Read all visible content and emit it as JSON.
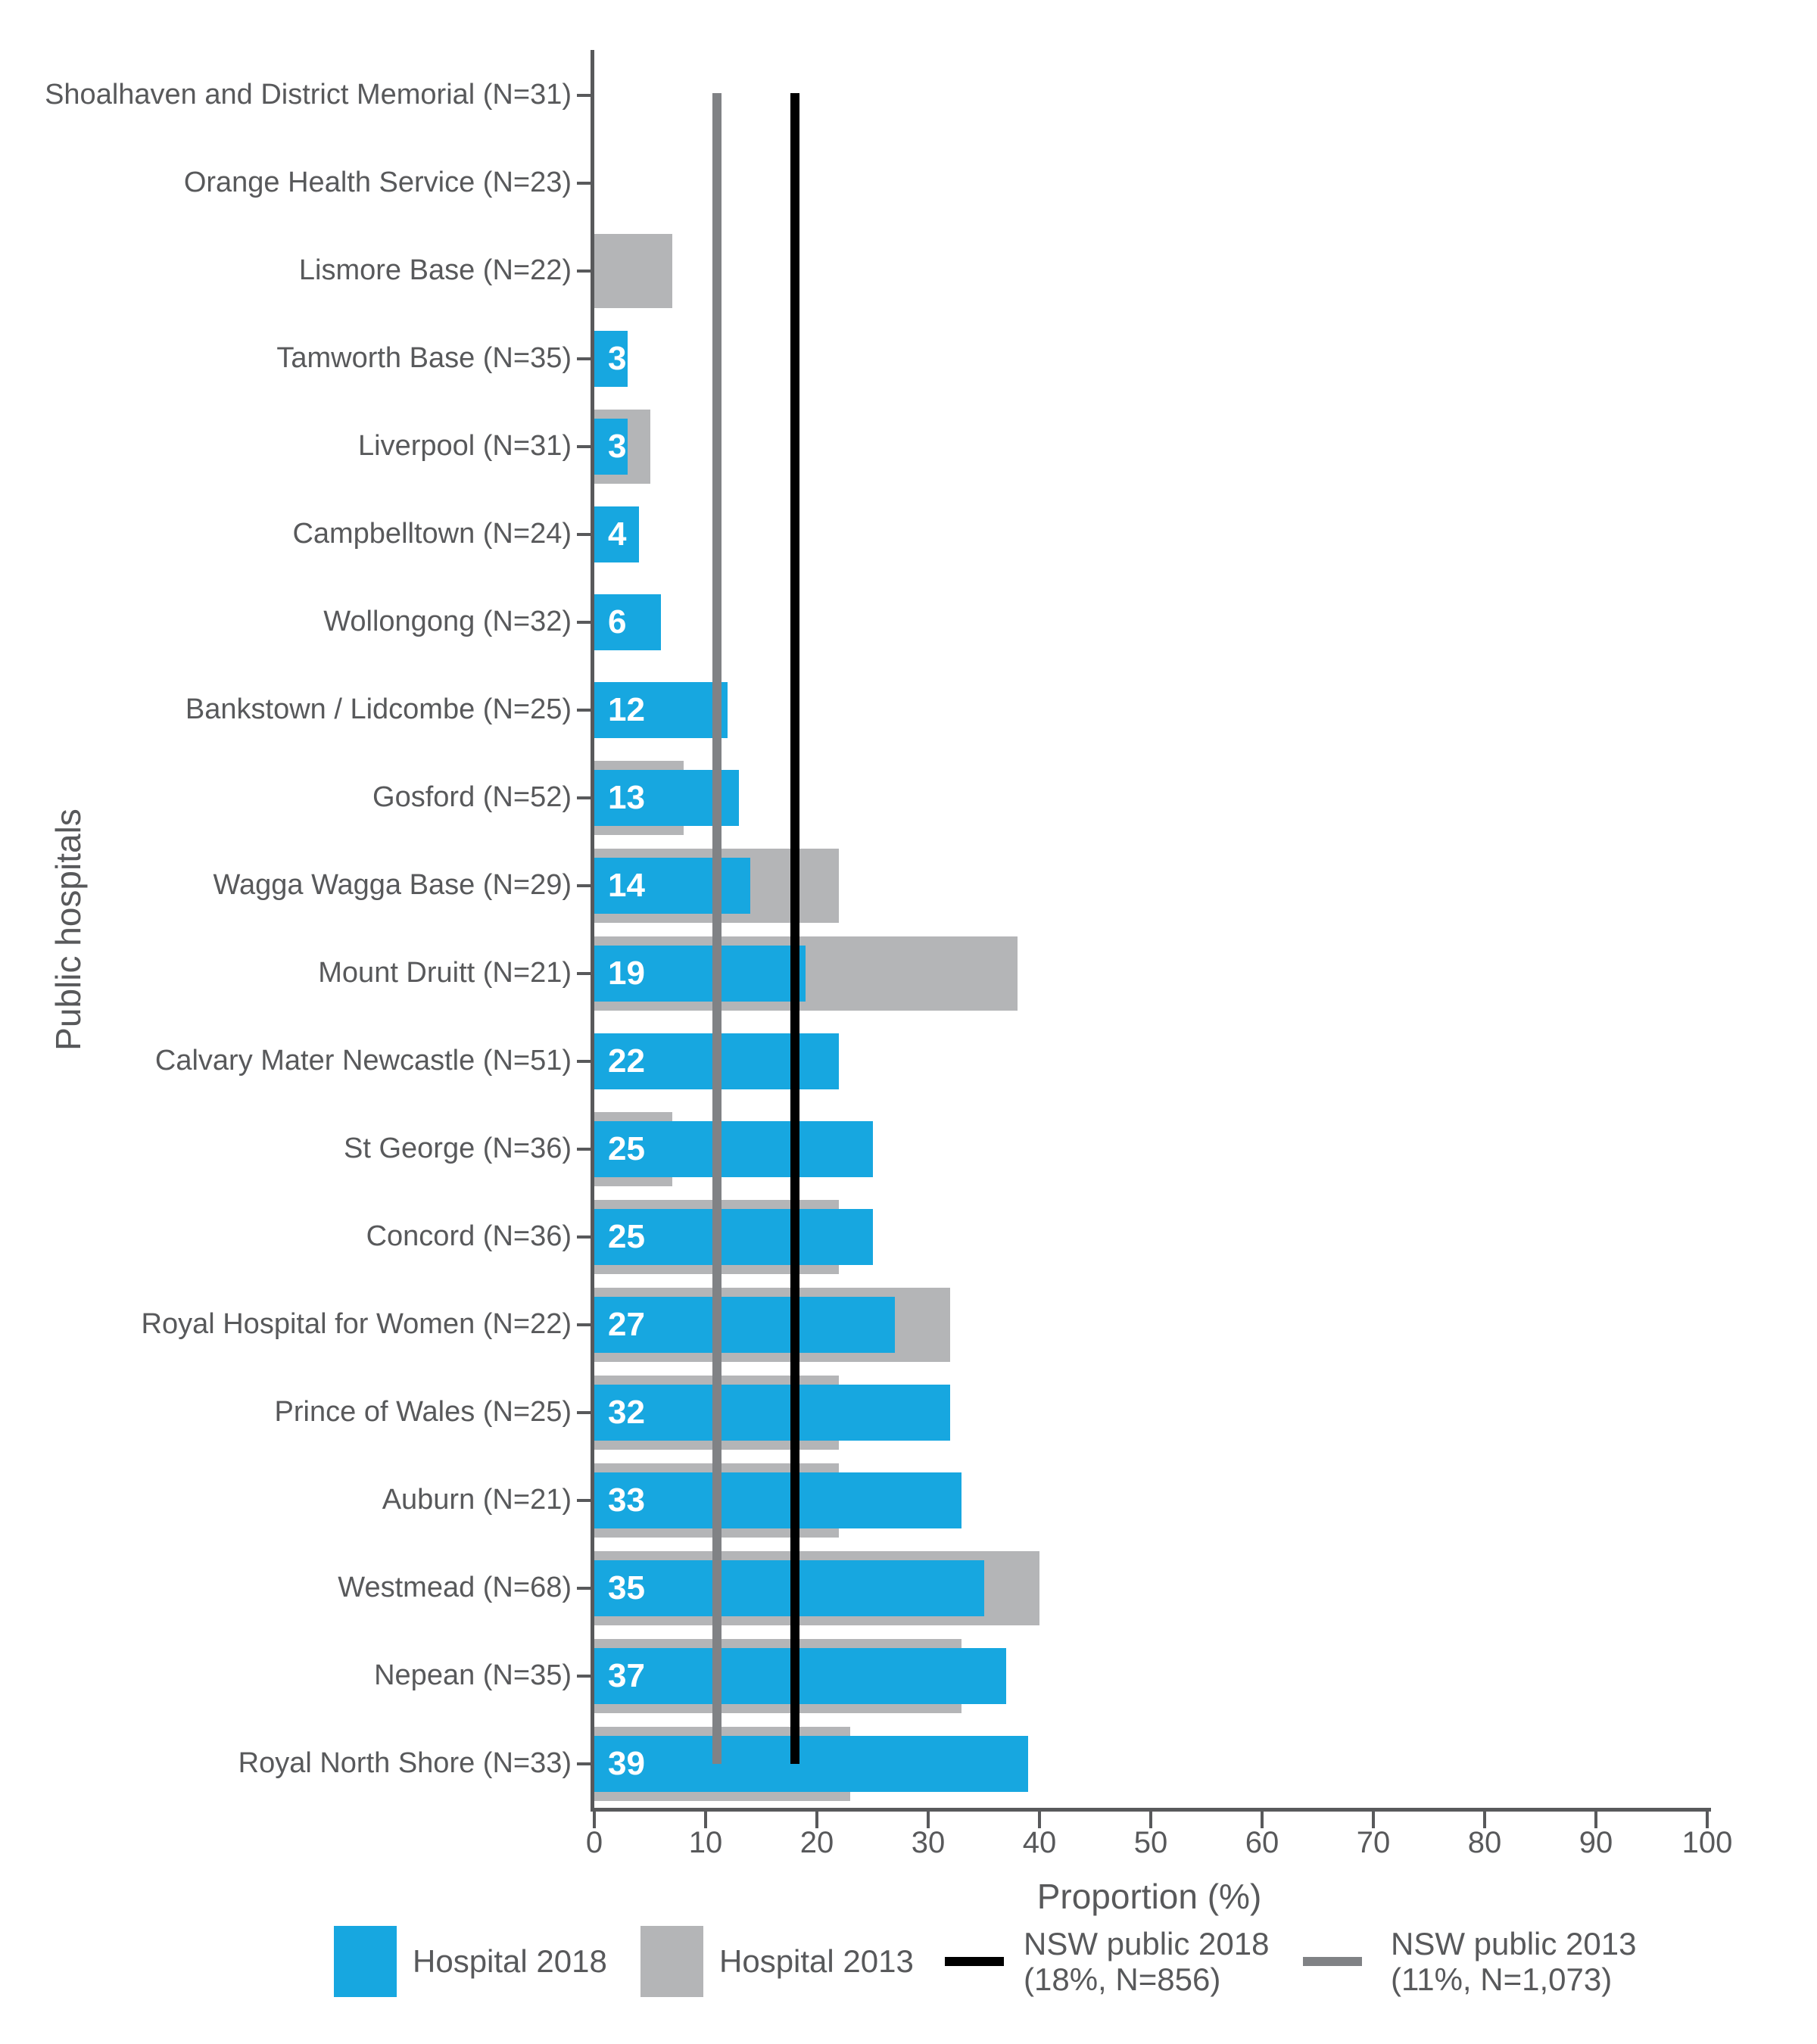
{
  "colors": {
    "bar_2018": "#17A7E0",
    "bar_2013": "#B4B5B7",
    "ref_2018": "#000000",
    "ref_2013": "#808285",
    "axis_and_text": "#58595B",
    "bar_value_label": "#FFFFFF",
    "background": "#FFFFFF"
  },
  "legend": {
    "hospital_2018": "Hospital 2018",
    "hospital_2013": "Hospital 2013",
    "nsw_2018_line1": "NSW public 2018",
    "nsw_2018_line2": "(18%, N=856)",
    "nsw_2013_line1": "NSW public 2013",
    "nsw_2013_line2": "(11%, N=1,073)"
  },
  "chart_data": {
    "type": "bar",
    "orientation": "horizontal",
    "title": "",
    "xlabel": "Proportion (%)",
    "ylabel": "Public hospitals",
    "xlim": [
      0,
      100
    ],
    "xticks": [
      0,
      10,
      20,
      30,
      40,
      50,
      60,
      70,
      80,
      90,
      100
    ],
    "grid": false,
    "legend_position": "bottom",
    "series": [
      {
        "name": "Hospital 2018",
        "color": "#17A7E0"
      },
      {
        "name": "Hospital 2013",
        "color": "#B4B5B7"
      }
    ],
    "reference_lines": [
      {
        "label": "NSW public 2018 (18%, N=856)",
        "value": 18,
        "color": "#000000"
      },
      {
        "label": "NSW public 2013 (11%, N=1,073)",
        "value": 11,
        "color": "#808285"
      }
    ],
    "rows": [
      {
        "label": "Shoalhaven and District Memorial (N=31)",
        "hospital_2018": null,
        "hospital_2013": null
      },
      {
        "label": "Orange Health Service (N=23)",
        "hospital_2018": null,
        "hospital_2013": null
      },
      {
        "label": "Lismore Base (N=22)",
        "hospital_2018": null,
        "hospital_2013": 7
      },
      {
        "label": "Tamworth Base (N=35)",
        "hospital_2018": 3,
        "hospital_2013": null
      },
      {
        "label": "Liverpool (N=31)",
        "hospital_2018": 3,
        "hospital_2013": 5
      },
      {
        "label": "Campbelltown (N=24)",
        "hospital_2018": 4,
        "hospital_2013": null
      },
      {
        "label": "Wollongong (N=32)",
        "hospital_2018": 6,
        "hospital_2013": null
      },
      {
        "label": "Bankstown / Lidcombe (N=25)",
        "hospital_2018": 12,
        "hospital_2013": null
      },
      {
        "label": "Gosford (N=52)",
        "hospital_2018": 13,
        "hospital_2013": 8
      },
      {
        "label": "Wagga Wagga Base (N=29)",
        "hospital_2018": 14,
        "hospital_2013": 22
      },
      {
        "label": "Mount Druitt (N=21)",
        "hospital_2018": 19,
        "hospital_2013": 38
      },
      {
        "label": "Calvary Mater Newcastle (N=51)",
        "hospital_2018": 22,
        "hospital_2013": null
      },
      {
        "label": "St George (N=36)",
        "hospital_2018": 25,
        "hospital_2013": 7
      },
      {
        "label": "Concord (N=36)",
        "hospital_2018": 25,
        "hospital_2013": 22
      },
      {
        "label": "Royal Hospital for Women (N=22)",
        "hospital_2018": 27,
        "hospital_2013": 32
      },
      {
        "label": "Prince of Wales (N=25)",
        "hospital_2018": 32,
        "hospital_2013": 22
      },
      {
        "label": "Auburn (N=21)",
        "hospital_2018": 33,
        "hospital_2013": 22
      },
      {
        "label": "Westmead (N=68)",
        "hospital_2018": 35,
        "hospital_2013": 40
      },
      {
        "label": "Nepean (N=35)",
        "hospital_2018": 37,
        "hospital_2013": 33
      },
      {
        "label": "Royal North Shore (N=33)",
        "hospital_2018": 39,
        "hospital_2013": 23
      }
    ]
  }
}
